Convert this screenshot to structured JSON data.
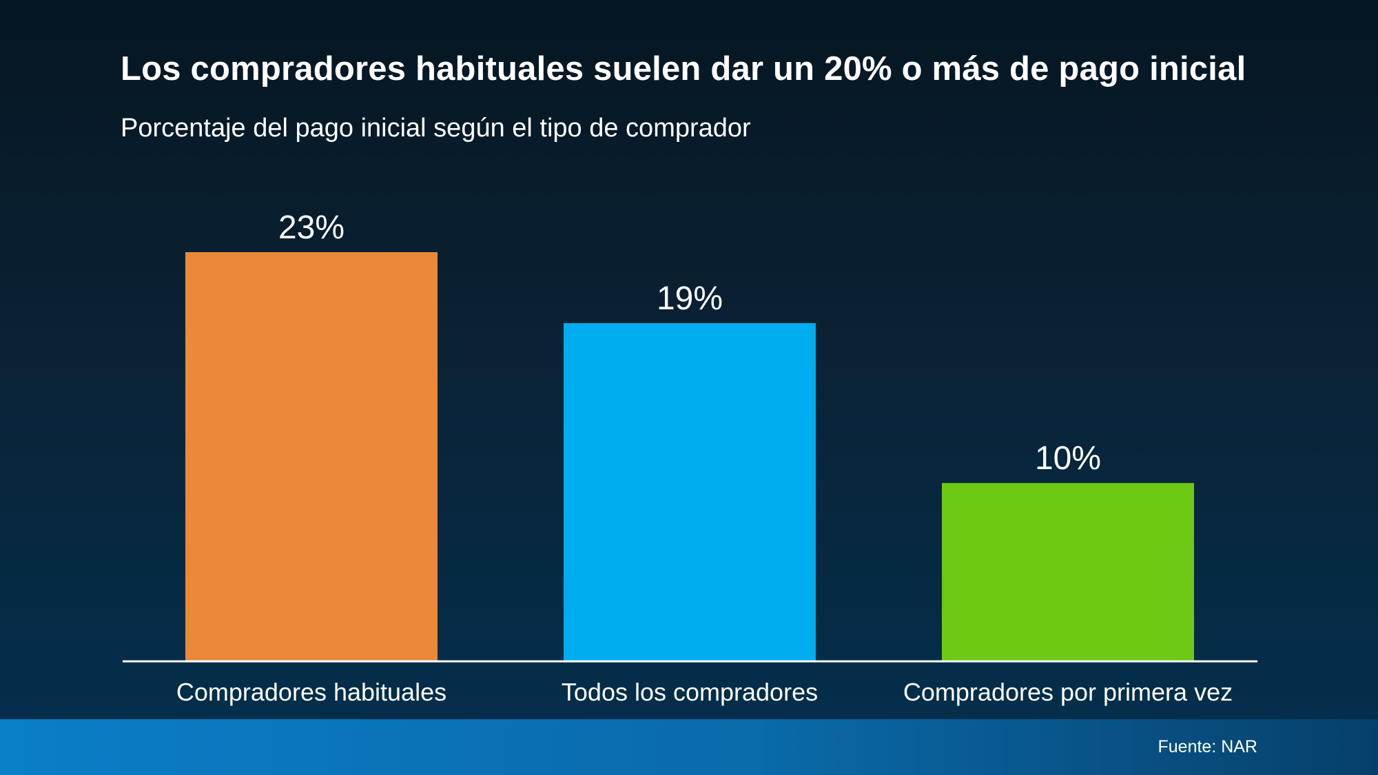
{
  "header": {
    "title": "Los compradores habituales suelen dar un 20% o más de pago inicial",
    "subtitle": "Porcentaje del pago inicial según el tipo de comprador"
  },
  "footer": {
    "source": "Fuente: NAR"
  },
  "chart_data": {
    "type": "bar",
    "title": "Los compradores habituales suelen dar un 20% o más de pago inicial",
    "subtitle": "Porcentaje del pago inicial según el tipo de comprador",
    "categories": [
      "Compradores habituales",
      "Todos los compradores",
      "Compradores por primera vez"
    ],
    "values": [
      23,
      19,
      10
    ],
    "value_labels": [
      "23%",
      "19%",
      "10%"
    ],
    "colors": [
      "#ec8839",
      "#00adee",
      "#6dc913"
    ],
    "unit": "%",
    "ylim": [
      0,
      23
    ],
    "grid": false,
    "legend": "none"
  }
}
